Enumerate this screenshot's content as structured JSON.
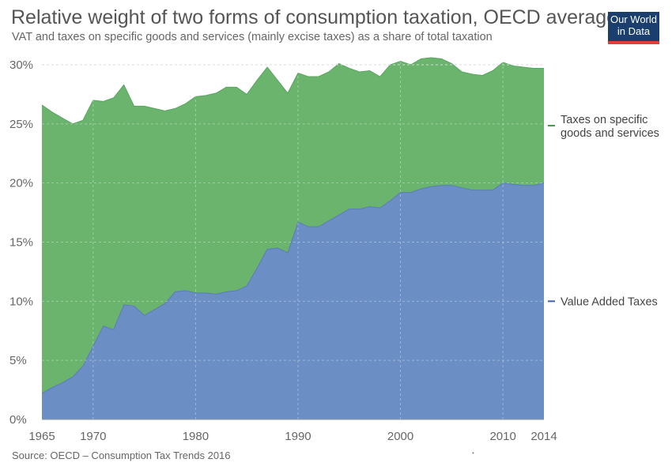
{
  "header": {
    "title": "Relative weight of two forms of consumption taxation, OECD average",
    "subtitle": "VAT and taxes on specific goods and services (mainly excise taxes) as a share of total taxation"
  },
  "logo": {
    "line1": "Our World",
    "line2": "in Data",
    "colors": {
      "background": "#1a3e6d",
      "stripe": "#e0403a"
    }
  },
  "footer": {
    "source": "Source: OECD – Consumption Tax Trends 2016",
    "dot": "•"
  },
  "chart_data": {
    "type": "area",
    "stacked": true,
    "x": [
      1965,
      1966,
      1967,
      1968,
      1969,
      1970,
      1971,
      1972,
      1973,
      1974,
      1975,
      1976,
      1977,
      1978,
      1979,
      1980,
      1981,
      1982,
      1983,
      1984,
      1985,
      1986,
      1987,
      1988,
      1989,
      1990,
      1991,
      1992,
      1993,
      1994,
      1995,
      1996,
      1997,
      1998,
      1999,
      2000,
      2001,
      2002,
      2003,
      2004,
      2005,
      2006,
      2007,
      2008,
      2009,
      2010,
      2011,
      2012,
      2013,
      2014
    ],
    "series": [
      {
        "name": "Value Added Taxes",
        "color": "#6b8ec4",
        "values": [
          2.2,
          2.7,
          3.1,
          3.6,
          4.5,
          6.2,
          7.9,
          7.6,
          9.7,
          9.6,
          8.8,
          9.3,
          9.8,
          10.8,
          10.9,
          10.7,
          10.7,
          10.6,
          10.8,
          10.9,
          11.3,
          12.8,
          14.4,
          14.5,
          14.1,
          16.7,
          16.3,
          16.3,
          16.8,
          17.3,
          17.8,
          17.8,
          18.0,
          17.9,
          18.5,
          19.2,
          19.2,
          19.5,
          19.7,
          19.8,
          19.8,
          19.6,
          19.4,
          19.4,
          19.4,
          20.0,
          19.9,
          19.8,
          19.8,
          20.0
        ]
      },
      {
        "name": "Taxes on specific goods and services",
        "color": "#6ab46e",
        "values": [
          24.4,
          23.3,
          22.4,
          21.4,
          20.8,
          20.8,
          19.0,
          19.6,
          18.6,
          16.9,
          17.7,
          17.0,
          16.3,
          15.5,
          15.8,
          16.6,
          16.7,
          17.0,
          17.3,
          17.2,
          16.2,
          15.9,
          15.4,
          14.2,
          13.5,
          12.6,
          12.7,
          12.7,
          12.6,
          12.8,
          11.9,
          11.6,
          11.5,
          11.1,
          11.5,
          11.1,
          10.8,
          11.0,
          10.9,
          10.7,
          10.3,
          9.8,
          9.8,
          9.7,
          10.1,
          10.2,
          10.0,
          10.0,
          9.9,
          9.7
        ]
      }
    ],
    "ylim": [
      0,
      30
    ],
    "yticks": [
      "0%",
      "5%",
      "10%",
      "15%",
      "20%",
      "25%",
      "30%"
    ],
    "xticks": [
      "1965",
      "1970",
      "1980",
      "1990",
      "2000",
      "2010",
      "2014"
    ],
    "legend": [
      {
        "line1": "Taxes on specific",
        "line2": "goods and services",
        "color": "#3a9a44"
      },
      {
        "line1": "Value Added Taxes",
        "line2": "",
        "color": "#3b62ae"
      }
    ],
    "legend_placement": "right",
    "grid": true
  }
}
